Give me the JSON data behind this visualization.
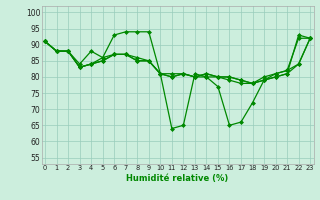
{
  "xlabel": "Humidité relative (%)",
  "ylabel_ticks": [
    55,
    60,
    65,
    70,
    75,
    80,
    85,
    90,
    95,
    100
  ],
  "xlim": [
    -0.3,
    23.3
  ],
  "ylim": [
    53,
    102
  ],
  "background_color": "#cceedd",
  "grid_color": "#99ccbb",
  "line_color": "#008800",
  "series": [
    [
      91,
      88,
      88,
      83,
      84,
      86,
      87,
      87,
      85,
      85,
      81,
      80,
      81,
      80,
      81,
      80,
      80,
      79,
      78,
      80,
      81,
      82,
      84,
      92
    ],
    [
      91,
      88,
      88,
      84,
      88,
      86,
      93,
      94,
      94,
      94,
      81,
      81,
      81,
      80,
      81,
      80,
      80,
      79,
      78,
      79,
      81,
      82,
      92,
      92
    ],
    [
      91,
      88,
      88,
      83,
      84,
      85,
      87,
      87,
      86,
      85,
      81,
      64,
      65,
      81,
      80,
      77,
      65,
      66,
      72,
      79,
      80,
      81,
      93,
      92
    ],
    [
      91,
      88,
      88,
      83,
      84,
      85,
      87,
      87,
      85,
      85,
      81,
      80,
      81,
      80,
      80,
      80,
      79,
      78,
      78,
      79,
      80,
      81,
      84,
      92
    ]
  ],
  "xtick_labels": [
    "0",
    "1",
    "2",
    "3",
    "4",
    "5",
    "6",
    "7",
    "8",
    "9",
    "10",
    "11",
    "12",
    "13",
    "14",
    "15",
    "16",
    "17",
    "18",
    "19",
    "20",
    "21",
    "22",
    "23"
  ]
}
